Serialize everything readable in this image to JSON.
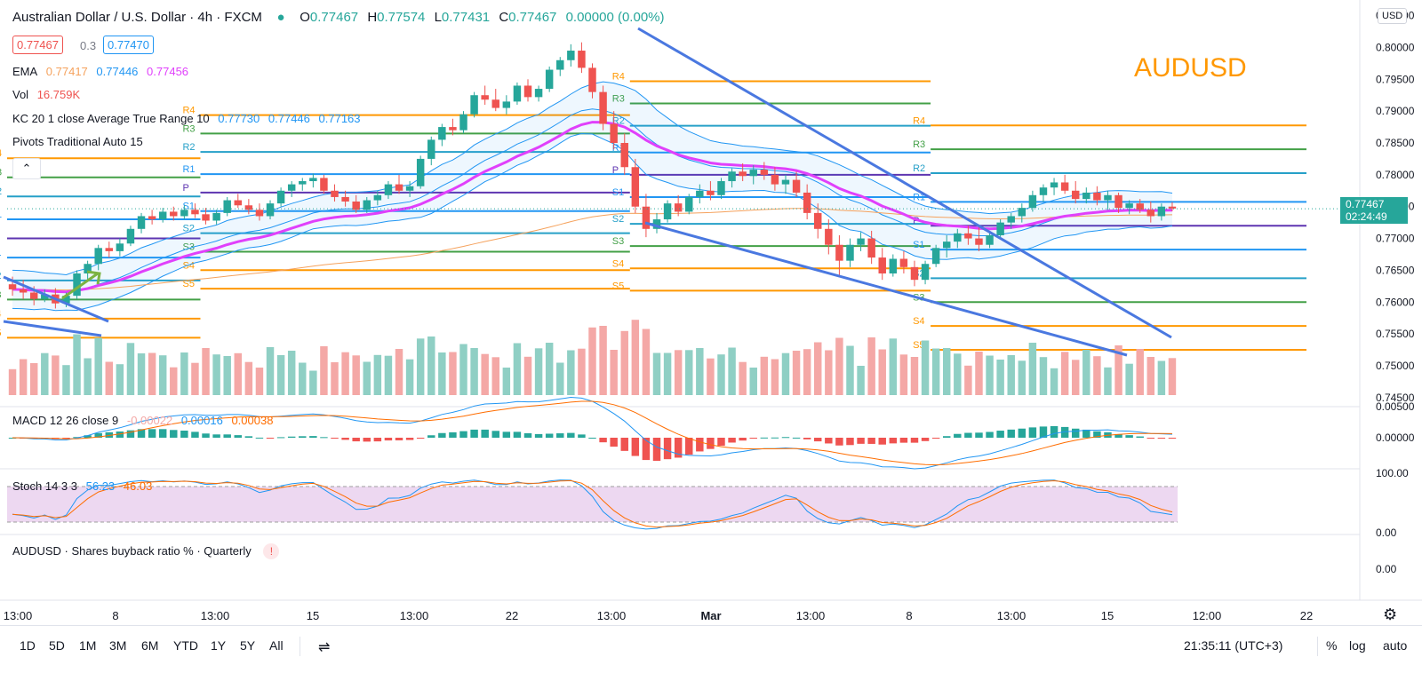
{
  "header": {
    "symbol_title": "Australian Dollar / U.S. Dollar · 4h · FXCM",
    "ohlc": {
      "o_label": "O",
      "o": "0.77467",
      "h_label": "H",
      "h": "0.77574",
      "l_label": "L",
      "l": "0.77431",
      "c_label": "C",
      "c": "0.77467",
      "change": "0.00000 (0.00%)"
    },
    "bid": "0.77467",
    "spread": "0.3",
    "ask": "0.77470",
    "watermark": "AUDUSD"
  },
  "indicators": {
    "ema": {
      "label": "EMA",
      "v1": "0.77417",
      "v2": "0.77446",
      "v3": "0.77456"
    },
    "vol": {
      "label": "Vol",
      "value": "16.759K"
    },
    "kc": {
      "label": "KC 20 1 close Average True Range 10",
      "upper": "0.77730",
      "mid": "0.77446",
      "lower": "0.77163"
    },
    "pivots": {
      "label": "Pivots Traditional Auto 15"
    },
    "macd": {
      "label": "MACD 12 26 close 9",
      "hist": "-0.00022",
      "macd": "0.00016",
      "signal": "0.00038"
    },
    "stoch": {
      "label": "Stoch 14 3 3",
      "k": "56.23",
      "d": "46.03"
    },
    "buyback": {
      "label": "AUDUSD · Shares buyback ratio % · Quarterly",
      "value": "0.00"
    }
  },
  "price_axis": {
    "currency": "USD",
    "ticks": [
      "0.80500",
      "0.80000",
      "0.79500",
      "0.79000",
      "0.78500",
      "0.78000",
      "0.77500",
      "0.77000",
      "0.76500",
      "0.76000",
      "0.75500",
      "0.75000",
      "0.74500"
    ],
    "last_price": "0.77467",
    "countdown": "02:24:49",
    "macd_ticks": [
      "0.00500",
      "0.00000"
    ],
    "stoch_ticks": [
      "100.00",
      "0.00"
    ]
  },
  "time_axis": {
    "ticks": [
      "13:00",
      "8",
      "13:00",
      "15",
      "13:00",
      "22",
      "13:00",
      "Mar",
      "13:00",
      "8",
      "13:00",
      "15",
      "12:00",
      "22"
    ],
    "clock": "21:35:11 (UTC+3)"
  },
  "toolbar": {
    "timeframes": [
      "1D",
      "5D",
      "1M",
      "3M",
      "6M",
      "YTD",
      "1Y",
      "5Y",
      "All"
    ],
    "percent_label": "%",
    "log_label": "log",
    "auto_label": "auto"
  },
  "colors": {
    "up": "#26a69a",
    "down": "#ef5350",
    "vol_up": "#8fcfc4",
    "vol_down": "#f4a8a6",
    "ema_pink": "#e040fb",
    "ema_orange": "#f5a25d",
    "kc_blue": "#2196f3",
    "trendline": "#4a78e0",
    "watermark": "#ff9800",
    "stoch_bg": "#e1bee7",
    "macd_line": "#2196f3",
    "signal_line": "#ff6d00"
  },
  "chart_data": {
    "type": "candlestick",
    "timeframe": "4h",
    "symbol": "AUDUSD",
    "ylim": [
      0.744,
      0.8055
    ],
    "candles": [
      [
        0.7628,
        0.764,
        0.761,
        0.762
      ],
      [
        0.762,
        0.7635,
        0.7605,
        0.7615
      ],
      [
        0.7615,
        0.7625,
        0.7595,
        0.7605
      ],
      [
        0.7605,
        0.762,
        0.76,
        0.7612
      ],
      [
        0.7612,
        0.7622,
        0.759,
        0.7598
      ],
      [
        0.7598,
        0.7615,
        0.7592,
        0.761
      ],
      [
        0.761,
        0.765,
        0.7605,
        0.7645
      ],
      [
        0.7645,
        0.7665,
        0.7635,
        0.766
      ],
      [
        0.766,
        0.769,
        0.765,
        0.7685
      ],
      [
        0.7685,
        0.7695,
        0.767,
        0.768
      ],
      [
        0.768,
        0.77,
        0.7672,
        0.7692
      ],
      [
        0.7692,
        0.772,
        0.7688,
        0.7715
      ],
      [
        0.7715,
        0.774,
        0.7708,
        0.7735
      ],
      [
        0.7735,
        0.7745,
        0.7722,
        0.773
      ],
      [
        0.773,
        0.7748,
        0.7725,
        0.7742
      ],
      [
        0.7742,
        0.775,
        0.7728,
        0.7735
      ],
      [
        0.7735,
        0.7752,
        0.773,
        0.7745
      ],
      [
        0.7745,
        0.7755,
        0.7732,
        0.7738
      ],
      [
        0.7738,
        0.7748,
        0.7722,
        0.7728
      ],
      [
        0.7728,
        0.7745,
        0.7722,
        0.774
      ],
      [
        0.774,
        0.7765,
        0.7735,
        0.776
      ],
      [
        0.776,
        0.777,
        0.7748,
        0.7752
      ],
      [
        0.7752,
        0.7762,
        0.7738,
        0.7745
      ],
      [
        0.7745,
        0.7755,
        0.7728,
        0.7735
      ],
      [
        0.7735,
        0.776,
        0.773,
        0.7755
      ],
      [
        0.7755,
        0.778,
        0.775,
        0.7775
      ],
      [
        0.7775,
        0.779,
        0.7765,
        0.7785
      ],
      [
        0.7785,
        0.7795,
        0.7775,
        0.779
      ],
      [
        0.779,
        0.7802,
        0.778,
        0.7795
      ],
      [
        0.7795,
        0.78,
        0.777,
        0.7775
      ],
      [
        0.7775,
        0.7785,
        0.7758,
        0.7765
      ],
      [
        0.7765,
        0.7775,
        0.775,
        0.7758
      ],
      [
        0.7758,
        0.7768,
        0.774,
        0.7745
      ],
      [
        0.7745,
        0.7765,
        0.774,
        0.776
      ],
      [
        0.776,
        0.7775,
        0.7752,
        0.7768
      ],
      [
        0.7768,
        0.779,
        0.7762,
        0.7785
      ],
      [
        0.7785,
        0.78,
        0.777,
        0.7775
      ],
      [
        0.7775,
        0.779,
        0.7765,
        0.7782
      ],
      [
        0.7782,
        0.783,
        0.7778,
        0.7825
      ],
      [
        0.7825,
        0.786,
        0.7815,
        0.7855
      ],
      [
        0.7855,
        0.788,
        0.7845,
        0.7875
      ],
      [
        0.7875,
        0.7888,
        0.7862,
        0.787
      ],
      [
        0.787,
        0.79,
        0.7865,
        0.7895
      ],
      [
        0.7895,
        0.793,
        0.789,
        0.7925
      ],
      [
        0.7925,
        0.794,
        0.791,
        0.7918
      ],
      [
        0.7918,
        0.7935,
        0.79,
        0.7905
      ],
      [
        0.7905,
        0.7925,
        0.7895,
        0.7915
      ],
      [
        0.7915,
        0.7945,
        0.791,
        0.794
      ],
      [
        0.794,
        0.795,
        0.7915,
        0.7922
      ],
      [
        0.7922,
        0.794,
        0.7915,
        0.7935
      ],
      [
        0.7935,
        0.797,
        0.793,
        0.7965
      ],
      [
        0.7965,
        0.7985,
        0.7955,
        0.798
      ],
      [
        0.798,
        0.8005,
        0.797,
        0.7995
      ],
      [
        0.7995,
        0.8008,
        0.796,
        0.7968
      ],
      [
        0.7968,
        0.7975,
        0.792,
        0.793
      ],
      [
        0.793,
        0.794,
        0.787,
        0.788
      ],
      [
        0.788,
        0.79,
        0.784,
        0.785
      ],
      [
        0.785,
        0.7865,
        0.78,
        0.7812
      ],
      [
        0.7812,
        0.7825,
        0.774,
        0.775
      ],
      [
        0.775,
        0.777,
        0.7702,
        0.7715
      ],
      [
        0.7715,
        0.774,
        0.7708,
        0.773
      ],
      [
        0.773,
        0.776,
        0.7725,
        0.7755
      ],
      [
        0.7755,
        0.7768,
        0.7735,
        0.7742
      ],
      [
        0.7742,
        0.777,
        0.7738,
        0.7765
      ],
      [
        0.7765,
        0.7785,
        0.7755,
        0.7775
      ],
      [
        0.7775,
        0.779,
        0.776,
        0.7768
      ],
      [
        0.7768,
        0.7795,
        0.7762,
        0.779
      ],
      [
        0.779,
        0.781,
        0.778,
        0.7805
      ],
      [
        0.7805,
        0.7818,
        0.779,
        0.7798
      ],
      [
        0.7798,
        0.7815,
        0.7785,
        0.7808
      ],
      [
        0.7808,
        0.782,
        0.7792,
        0.78
      ],
      [
        0.78,
        0.7812,
        0.7775,
        0.7785
      ],
      [
        0.7785,
        0.78,
        0.777,
        0.7792
      ],
      [
        0.7792,
        0.7805,
        0.7765,
        0.7772
      ],
      [
        0.7772,
        0.7785,
        0.773,
        0.774
      ],
      [
        0.774,
        0.7755,
        0.77,
        0.7715
      ],
      [
        0.7715,
        0.773,
        0.7675,
        0.769
      ],
      [
        0.769,
        0.7705,
        0.764,
        0.7665
      ],
      [
        0.7665,
        0.77,
        0.7655,
        0.769
      ],
      [
        0.769,
        0.771,
        0.768,
        0.77
      ],
      [
        0.77,
        0.7712,
        0.766,
        0.767
      ],
      [
        0.767,
        0.7685,
        0.7635,
        0.7645
      ],
      [
        0.7645,
        0.7675,
        0.764,
        0.7668
      ],
      [
        0.7668,
        0.768,
        0.7645,
        0.7655
      ],
      [
        0.7655,
        0.7665,
        0.7625,
        0.7635
      ],
      [
        0.7635,
        0.7665,
        0.7628,
        0.766
      ],
      [
        0.766,
        0.769,
        0.7655,
        0.7685
      ],
      [
        0.7685,
        0.7705,
        0.767,
        0.7695
      ],
      [
        0.7695,
        0.7715,
        0.7685,
        0.7708
      ],
      [
        0.7708,
        0.772,
        0.769,
        0.77
      ],
      [
        0.77,
        0.7718,
        0.768,
        0.769
      ],
      [
        0.769,
        0.7712,
        0.7685,
        0.7705
      ],
      [
        0.7705,
        0.773,
        0.77,
        0.7725
      ],
      [
        0.7725,
        0.774,
        0.7715,
        0.7735
      ],
      [
        0.7735,
        0.7755,
        0.7725,
        0.7748
      ],
      [
        0.7748,
        0.7775,
        0.7742,
        0.7768
      ],
      [
        0.7768,
        0.7785,
        0.7758,
        0.778
      ],
      [
        0.778,
        0.7795,
        0.7768,
        0.7788
      ],
      [
        0.7788,
        0.78,
        0.777,
        0.7775
      ],
      [
        0.7775,
        0.779,
        0.7755,
        0.7762
      ],
      [
        0.7762,
        0.778,
        0.7755,
        0.7772
      ],
      [
        0.7772,
        0.7782,
        0.7752,
        0.776
      ],
      [
        0.776,
        0.7775,
        0.7745,
        0.7768
      ],
      [
        0.7768,
        0.7772,
        0.774,
        0.7748
      ],
      [
        0.7748,
        0.776,
        0.7738,
        0.7755
      ],
      [
        0.7755,
        0.7762,
        0.774,
        0.7745
      ],
      [
        0.7745,
        0.7758,
        0.7725,
        0.7735
      ],
      [
        0.7735,
        0.7755,
        0.7728,
        0.775
      ],
      [
        0.775,
        0.7757,
        0.7743,
        0.7747
      ]
    ],
    "pivot_levels": [
      "R4",
      "R3",
      "R2",
      "R1",
      "P",
      "S1",
      "S2",
      "S3",
      "S4",
      "S5"
    ]
  }
}
